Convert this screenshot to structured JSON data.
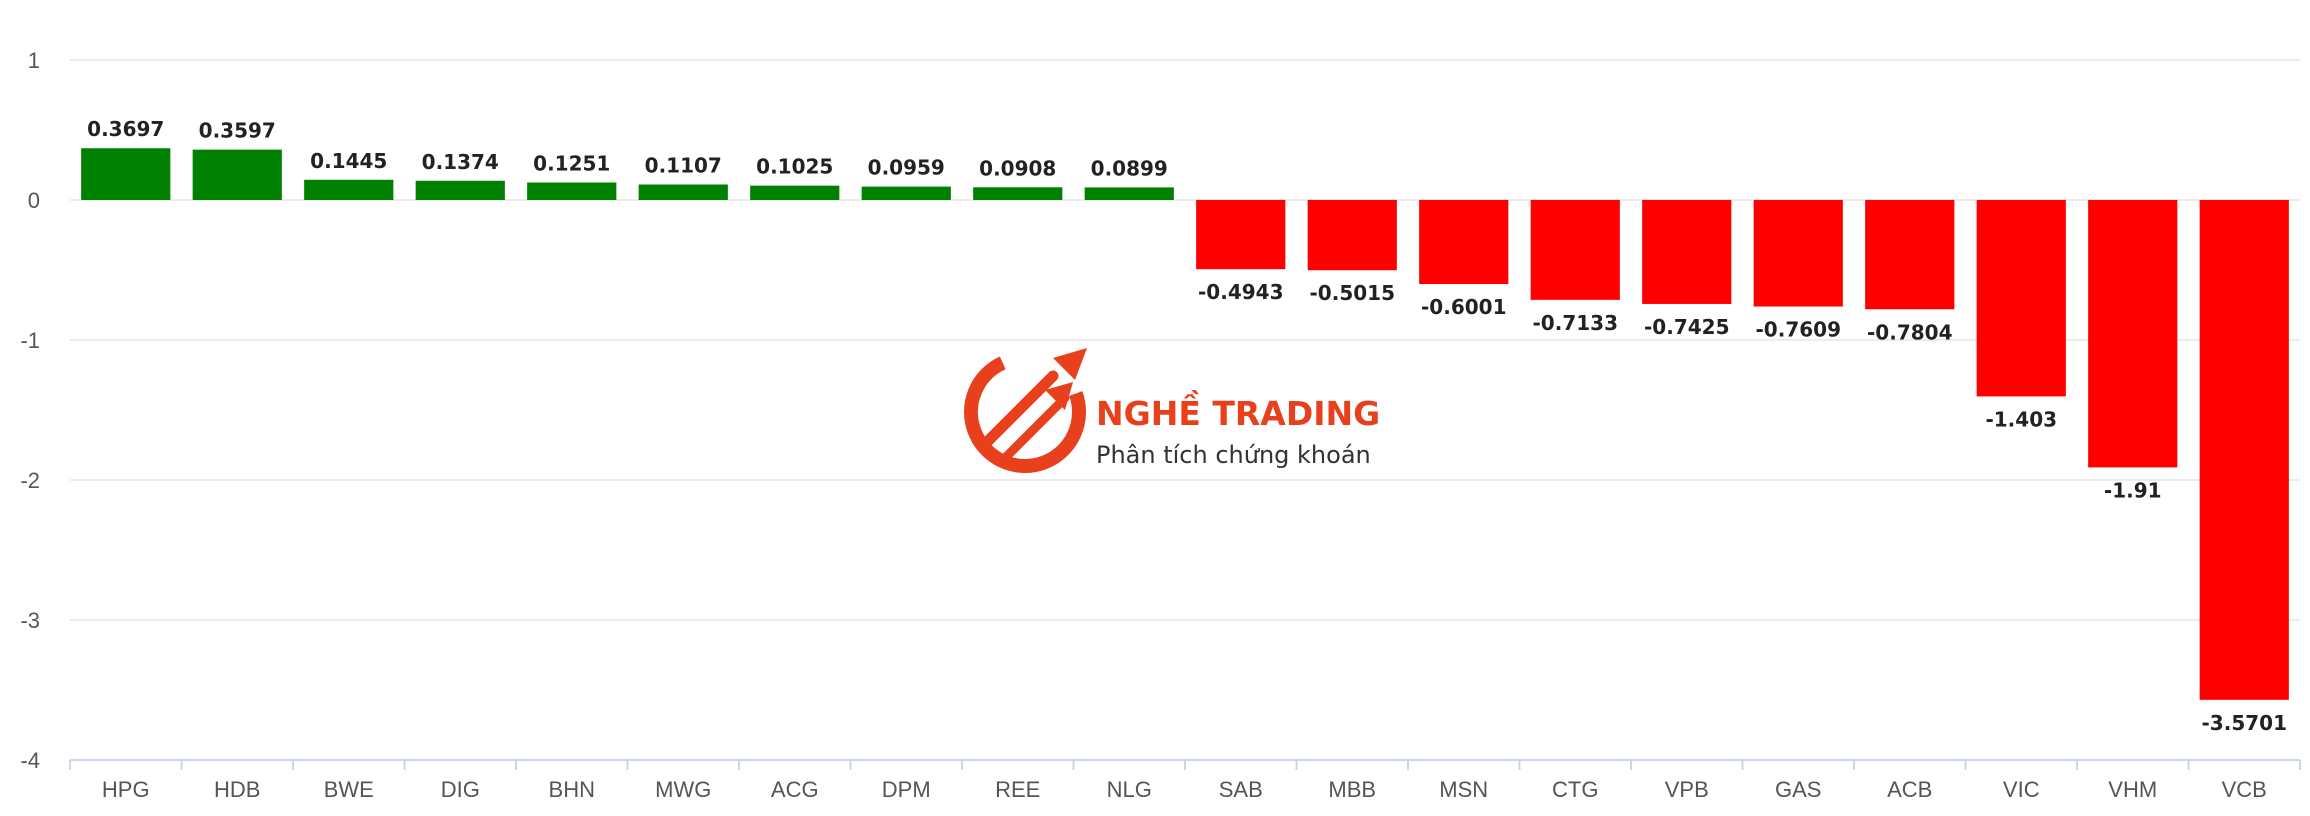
{
  "chart_data": {
    "type": "bar",
    "categories": [
      "HPG",
      "HDB",
      "BWE",
      "DIG",
      "BHN",
      "MWG",
      "ACG",
      "DPM",
      "REE",
      "NLG",
      "SAB",
      "MBB",
      "MSN",
      "CTG",
      "VPB",
      "GAS",
      "ACB",
      "VIC",
      "VHM",
      "VCB"
    ],
    "values": [
      0.3697,
      0.3597,
      0.1445,
      0.1374,
      0.1251,
      0.1107,
      0.1025,
      0.0959,
      0.0908,
      0.0899,
      -0.4943,
      -0.5015,
      -0.6001,
      -0.7133,
      -0.7425,
      -0.7609,
      -0.7804,
      -1.403,
      -1.91,
      -3.5701
    ],
    "value_labels": [
      "0.3697",
      "0.3597",
      "0.1445",
      "0.1374",
      "0.1251",
      "0.1107",
      "0.1025",
      "0.0959",
      "0.0908",
      "0.0899",
      "-0.4943",
      "-0.5015",
      "-0.6001",
      "-0.7133",
      "-0.7425",
      "-0.7609",
      "-0.7804",
      "-1.403",
      "-1.91",
      "-3.5701"
    ],
    "ylim": [
      -4,
      1
    ],
    "yticks": [
      1,
      0,
      -1,
      -2,
      -3,
      -4
    ],
    "grid": true,
    "colors": {
      "positive": "#008000",
      "negative": "#ff0000",
      "grid": "#e6e6e6",
      "axis": "#ccd6eb"
    },
    "title": "",
    "xlabel": "",
    "ylabel": ""
  },
  "watermark": {
    "brand": "NGHỀ TRADING",
    "tagline": "Phân tích chứng khoán",
    "color": "#e8401c",
    "icon": "trading-arrows-logo-icon"
  }
}
